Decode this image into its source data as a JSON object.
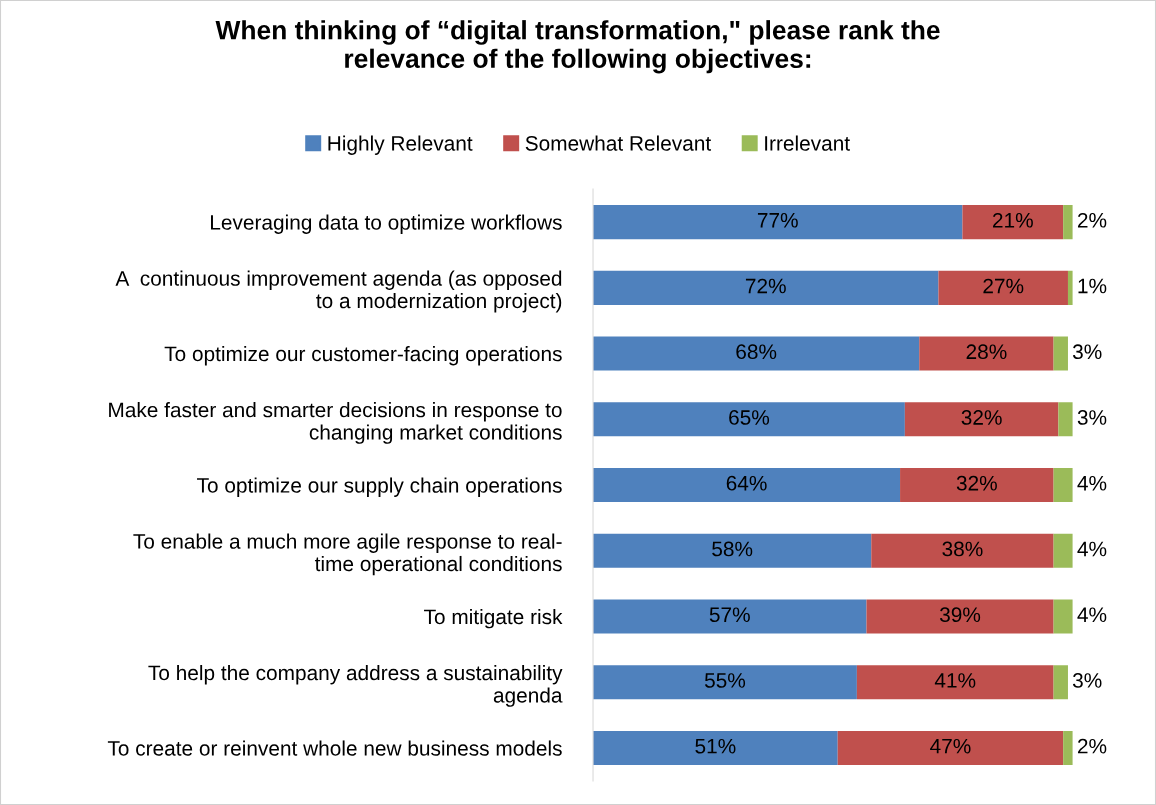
{
  "chart_data": {
    "type": "bar",
    "orientation": "horizontal",
    "stacked": true,
    "title": "When thinking of “digital transformation,\" please rank the\nrelevance of the following objectives:",
    "categories": [
      "Leveraging data to optimize workflows",
      "A  continuous improvement agenda (as opposed\nto a modernization project)",
      "To optimize our customer-facing operations",
      "Make faster and smarter decisions in response to\nchanging market conditions",
      "To optimize our supply chain operations",
      "To enable a much more agile response to real-\ntime operational conditions",
      "To mitigate risk",
      "To help the company address a sustainability\nagenda",
      "To create or reinvent whole new business models"
    ],
    "series": [
      {
        "name": "Highly Relevant",
        "color": "#4f81bd",
        "values": [
          77,
          72,
          68,
          65,
          64,
          58,
          57,
          55,
          51
        ],
        "value_labels": [
          "77%",
          "72%",
          "68%",
          "65%",
          "64%",
          "58%",
          "57%",
          "55%",
          "51%"
        ]
      },
      {
        "name": "Somewhat Relevant",
        "color": "#c0504d",
        "values": [
          21,
          27,
          28,
          32,
          32,
          38,
          39,
          41,
          47
        ],
        "value_labels": [
          "21%",
          "27%",
          "28%",
          "32%",
          "32%",
          "38%",
          "39%",
          "41%",
          "47%"
        ]
      },
      {
        "name": "Irrelevant",
        "color": "#9bbb59",
        "values": [
          2,
          1,
          3,
          3,
          4,
          4,
          4,
          3,
          2
        ],
        "value_labels": [
          "2%",
          "1%",
          "3%",
          "3%",
          "4%",
          "4%",
          "4%",
          "3%",
          "2%"
        ]
      }
    ],
    "legend": "top",
    "grid": false
  }
}
